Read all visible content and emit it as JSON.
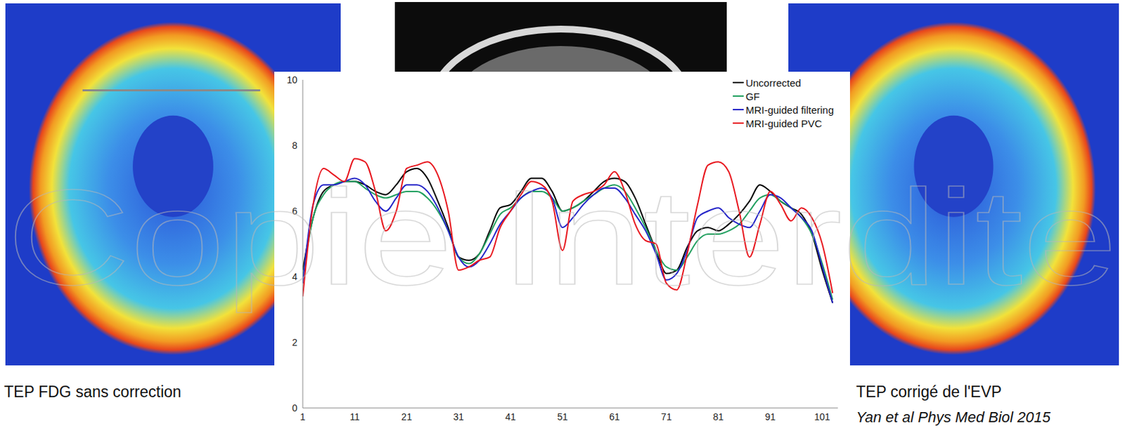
{
  "chart_data": {
    "type": "line",
    "x": [
      1,
      3,
      5,
      7,
      9,
      11,
      13,
      15,
      17,
      19,
      21,
      23,
      25,
      27,
      29,
      31,
      33,
      35,
      37,
      39,
      41,
      43,
      45,
      47,
      49,
      51,
      53,
      55,
      57,
      59,
      61,
      63,
      65,
      67,
      69,
      71,
      73,
      75,
      77,
      79,
      81,
      83,
      85,
      87,
      89,
      91,
      93,
      95,
      97,
      99,
      101,
      103
    ],
    "series": [
      {
        "name": "Uncorrected",
        "color": "#000000",
        "values": [
          4.2,
          5.8,
          6.6,
          6.8,
          6.9,
          6.9,
          6.8,
          6.6,
          6.5,
          6.8,
          7.2,
          7.3,
          7.0,
          6.3,
          5.5,
          4.6,
          4.5,
          4.7,
          5.4,
          6.1,
          6.2,
          6.6,
          7.0,
          7.0,
          6.6,
          6.0,
          6.1,
          6.3,
          6.6,
          6.9,
          7.0,
          6.9,
          6.4,
          5.6,
          4.8,
          4.1,
          4.2,
          4.9,
          5.4,
          5.5,
          5.4,
          5.6,
          5.9,
          6.3,
          6.8,
          6.6,
          6.3,
          6.1,
          5.9,
          5.3,
          4.2,
          3.2
        ]
      },
      {
        "name": "GF",
        "color": "#22a060",
        "values": [
          4.0,
          5.8,
          6.5,
          6.8,
          6.9,
          6.9,
          6.7,
          6.5,
          6.4,
          6.5,
          6.6,
          6.6,
          6.4,
          6.0,
          5.4,
          4.6,
          4.4,
          4.7,
          5.3,
          5.9,
          6.1,
          6.4,
          6.6,
          6.6,
          6.4,
          6.0,
          6.1,
          6.3,
          6.5,
          6.7,
          6.8,
          6.6,
          6.1,
          5.5,
          4.8,
          4.3,
          4.2,
          4.6,
          5.1,
          5.3,
          5.3,
          5.4,
          5.6,
          6.0,
          6.4,
          6.5,
          6.3,
          6.1,
          5.8,
          5.3,
          4.4,
          3.3
        ]
      },
      {
        "name": "MRI-guided filtering",
        "color": "#2525c8",
        "values": [
          3.8,
          6.2,
          6.8,
          6.8,
          6.9,
          7.0,
          6.8,
          6.3,
          6.0,
          6.4,
          6.8,
          6.8,
          6.6,
          6.1,
          5.4,
          4.6,
          4.3,
          4.5,
          5.0,
          5.6,
          6.0,
          6.4,
          6.6,
          6.7,
          6.4,
          5.5,
          5.8,
          6.2,
          6.5,
          6.7,
          6.7,
          6.4,
          5.9,
          5.4,
          4.7,
          3.9,
          4.1,
          4.8,
          5.8,
          6.0,
          6.1,
          5.8,
          5.6,
          5.5,
          6.0,
          6.5,
          6.4,
          6.1,
          5.8,
          5.4,
          4.3,
          3.2
        ]
      },
      {
        "name": "MRI-guided PVC",
        "color": "#e8161e",
        "values": [
          3.4,
          6.2,
          7.3,
          7.1,
          6.9,
          7.6,
          7.5,
          6.6,
          5.4,
          6.0,
          7.3,
          7.4,
          7.5,
          7.1,
          6.0,
          4.2,
          4.3,
          4.5,
          4.6,
          5.5,
          6.0,
          6.5,
          6.9,
          6.8,
          6.3,
          4.8,
          6.3,
          6.5,
          6.6,
          6.8,
          7.2,
          6.6,
          5.6,
          5.1,
          5.0,
          3.8,
          3.6,
          4.7,
          6.2,
          7.4,
          7.5,
          7.2,
          6.0,
          4.6,
          5.6,
          6.6,
          6.2,
          5.7,
          6.1,
          5.8,
          5.0,
          3.5
        ]
      }
    ],
    "xlim": [
      1,
      104
    ],
    "xticks": [
      1,
      11,
      21,
      31,
      41,
      51,
      61,
      71,
      81,
      91,
      101
    ],
    "ylim": [
      0,
      10
    ],
    "yticks": [
      0,
      2,
      4,
      6,
      8,
      10
    ],
    "grid": false,
    "legend": "upper right"
  },
  "captions": {
    "left": "TEP FDG sans correction",
    "right": "TEP corrigé de l'EVP"
  },
  "citation": "Yan et al Phys Med Biol 2015",
  "watermark": "Copie Interdite"
}
